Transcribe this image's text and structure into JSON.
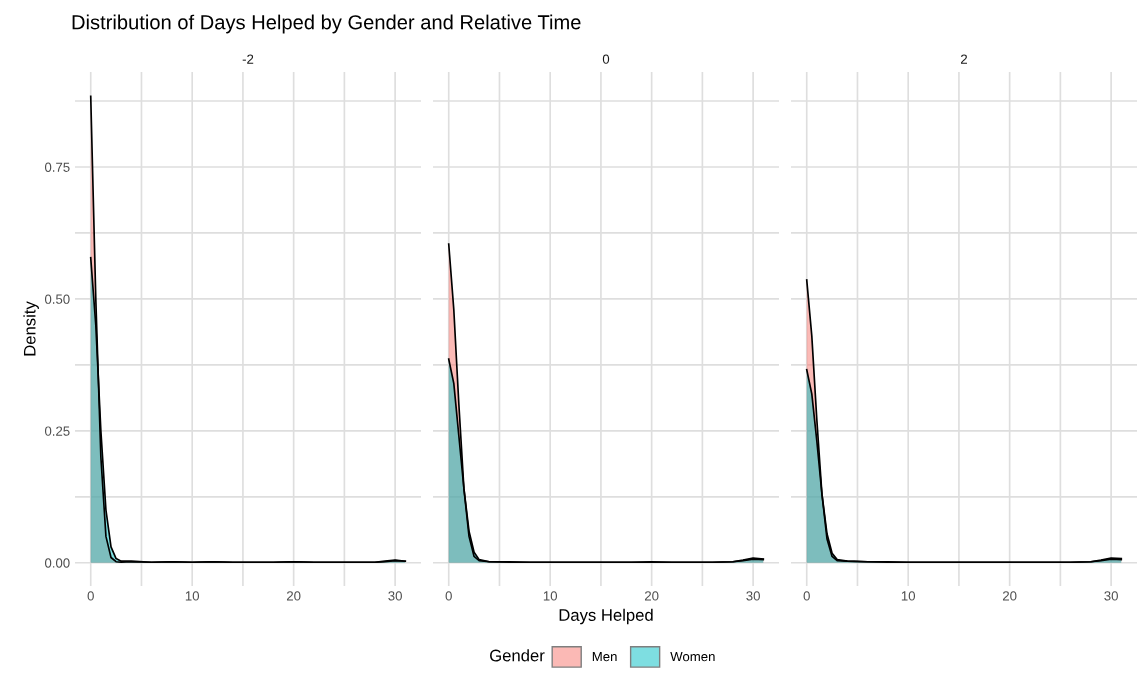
{
  "chart_data": [
    {
      "type": "area",
      "title": "Distribution of Days Helped by Gender and Relative Time",
      "subtitle": "-2",
      "ylabel": "Density",
      "legend_title": "Gender",
      "legend": "bottom",
      "grid": true,
      "tick_labels": "xy",
      "xlim": [
        -1.55,
        32.55
      ],
      "xticks": [
        0,
        {
          "value": 5,
          "label": null
        },
        10,
        {
          "value": 15,
          "label": null
        },
        20,
        {
          "value": 25,
          "label": null
        },
        30
      ],
      "ylim": [
        -0.044,
        0.93
      ],
      "yticks": [
        {
          "value": 0,
          "label": "0.00"
        },
        {
          "value": 0.125,
          "label": null
        },
        {
          "value": 0.25,
          "label": "0.25"
        },
        {
          "value": 0.375,
          "label": null
        },
        {
          "value": 0.5,
          "label": "0.50"
        },
        {
          "value": 0.625,
          "label": null
        },
        {
          "value": 0.75,
          "label": "0.75"
        },
        {
          "value": 0.875,
          "label": null
        }
      ],
      "x": [
        0,
        0.5,
        1,
        1.5,
        2,
        2.5,
        3,
        4,
        6,
        8,
        10,
        12,
        14,
        16,
        18,
        20,
        22,
        24,
        26,
        28,
        29,
        30,
        31
      ],
      "series": [
        {
          "name": "Men",
          "color": "#f8766d",
          "values": [
            0.884,
            0.5,
            0.2,
            0.05,
            0.01,
            0.002,
            0.001,
            0.002,
            0.001,
            0.002,
            0.001,
            0.002,
            0.001,
            0.001,
            0.001,
            0.002,
            0.001,
            0.001,
            0.001,
            0.001,
            0.002,
            0.004,
            0.003
          ]
        },
        {
          "name": "Women",
          "color": "#00bfc4",
          "values": [
            0.578,
            0.45,
            0.25,
            0.1,
            0.03,
            0.008,
            0.003,
            0.003,
            0.001,
            0.002,
            0.001,
            0.002,
            0.001,
            0.001,
            0.001,
            0.002,
            0.001,
            0.001,
            0.001,
            0.001,
            0.003,
            0.005,
            0.003
          ]
        }
      ]
    },
    {
      "type": "area",
      "subtitle": "0",
      "xlabel": "Days Helped",
      "grid": true,
      "tick_labels": "x",
      "xlim": [
        -1.55,
        32.55
      ],
      "xticks": [
        0,
        {
          "value": 5,
          "label": null
        },
        10,
        {
          "value": 15,
          "label": null
        },
        20,
        {
          "value": 25,
          "label": null
        },
        30
      ],
      "ylim": [
        -0.044,
        0.93
      ],
      "yticks": [
        {
          "value": 0,
          "label": null
        },
        {
          "value": 0.125,
          "label": null
        },
        {
          "value": 0.25,
          "label": null
        },
        {
          "value": 0.375,
          "label": null
        },
        {
          "value": 0.5,
          "label": null
        },
        {
          "value": 0.625,
          "label": null
        },
        {
          "value": 0.75,
          "label": null
        },
        {
          "value": 0.875,
          "label": null
        }
      ],
      "x": [
        0,
        0.5,
        1,
        1.5,
        2,
        2.5,
        3,
        4,
        6,
        8,
        10,
        12,
        14,
        16,
        18,
        20,
        22,
        24,
        26,
        28,
        29,
        30,
        31
      ],
      "series": [
        {
          "name": "Men",
          "color": "#f8766d",
          "values": [
            0.604,
            0.48,
            0.3,
            0.14,
            0.05,
            0.012,
            0.004,
            0.002,
            0.002,
            0.001,
            0.001,
            0.001,
            0.001,
            0.001,
            0.001,
            0.002,
            0.001,
            0.001,
            0.001,
            0.002,
            0.005,
            0.009,
            0.007
          ]
        },
        {
          "name": "Women",
          "color": "#00bfc4",
          "values": [
            0.386,
            0.34,
            0.24,
            0.14,
            0.06,
            0.02,
            0.006,
            0.002,
            0.001,
            0.001,
            0.001,
            0.001,
            0.001,
            0.001,
            0.001,
            0.001,
            0.001,
            0.001,
            0.001,
            0.002,
            0.004,
            0.007,
            0.006
          ]
        }
      ]
    },
    {
      "type": "area",
      "subtitle": "2",
      "grid": true,
      "tick_labels": "x",
      "xlim": [
        -1.55,
        32.55
      ],
      "xticks": [
        0,
        {
          "value": 5,
          "label": null
        },
        10,
        {
          "value": 15,
          "label": null
        },
        20,
        {
          "value": 25,
          "label": null
        },
        30
      ],
      "ylim": [
        -0.044,
        0.93
      ],
      "yticks": [
        {
          "value": 0,
          "label": null
        },
        {
          "value": 0.125,
          "label": null
        },
        {
          "value": 0.25,
          "label": null
        },
        {
          "value": 0.375,
          "label": null
        },
        {
          "value": 0.5,
          "label": null
        },
        {
          "value": 0.625,
          "label": null
        },
        {
          "value": 0.75,
          "label": null
        },
        {
          "value": 0.875,
          "label": null
        }
      ],
      "x": [
        0,
        0.5,
        1,
        1.5,
        2,
        2.5,
        3,
        4,
        6,
        8,
        10,
        12,
        14,
        16,
        18,
        20,
        22,
        24,
        26,
        28,
        29,
        30,
        31
      ],
      "series": [
        {
          "name": "Men",
          "color": "#f8766d",
          "values": [
            0.536,
            0.43,
            0.27,
            0.13,
            0.045,
            0.012,
            0.004,
            0.003,
            0.002,
            0.002,
            0.001,
            0.001,
            0.001,
            0.001,
            0.001,
            0.001,
            0.001,
            0.001,
            0.001,
            0.002,
            0.005,
            0.009,
            0.008
          ]
        },
        {
          "name": "Women",
          "color": "#00bfc4",
          "values": [
            0.366,
            0.32,
            0.23,
            0.13,
            0.055,
            0.018,
            0.006,
            0.003,
            0.002,
            0.001,
            0.001,
            0.001,
            0.001,
            0.001,
            0.001,
            0.001,
            0.001,
            0.001,
            0.001,
            0.002,
            0.004,
            0.007,
            0.006
          ]
        }
      ]
    }
  ]
}
